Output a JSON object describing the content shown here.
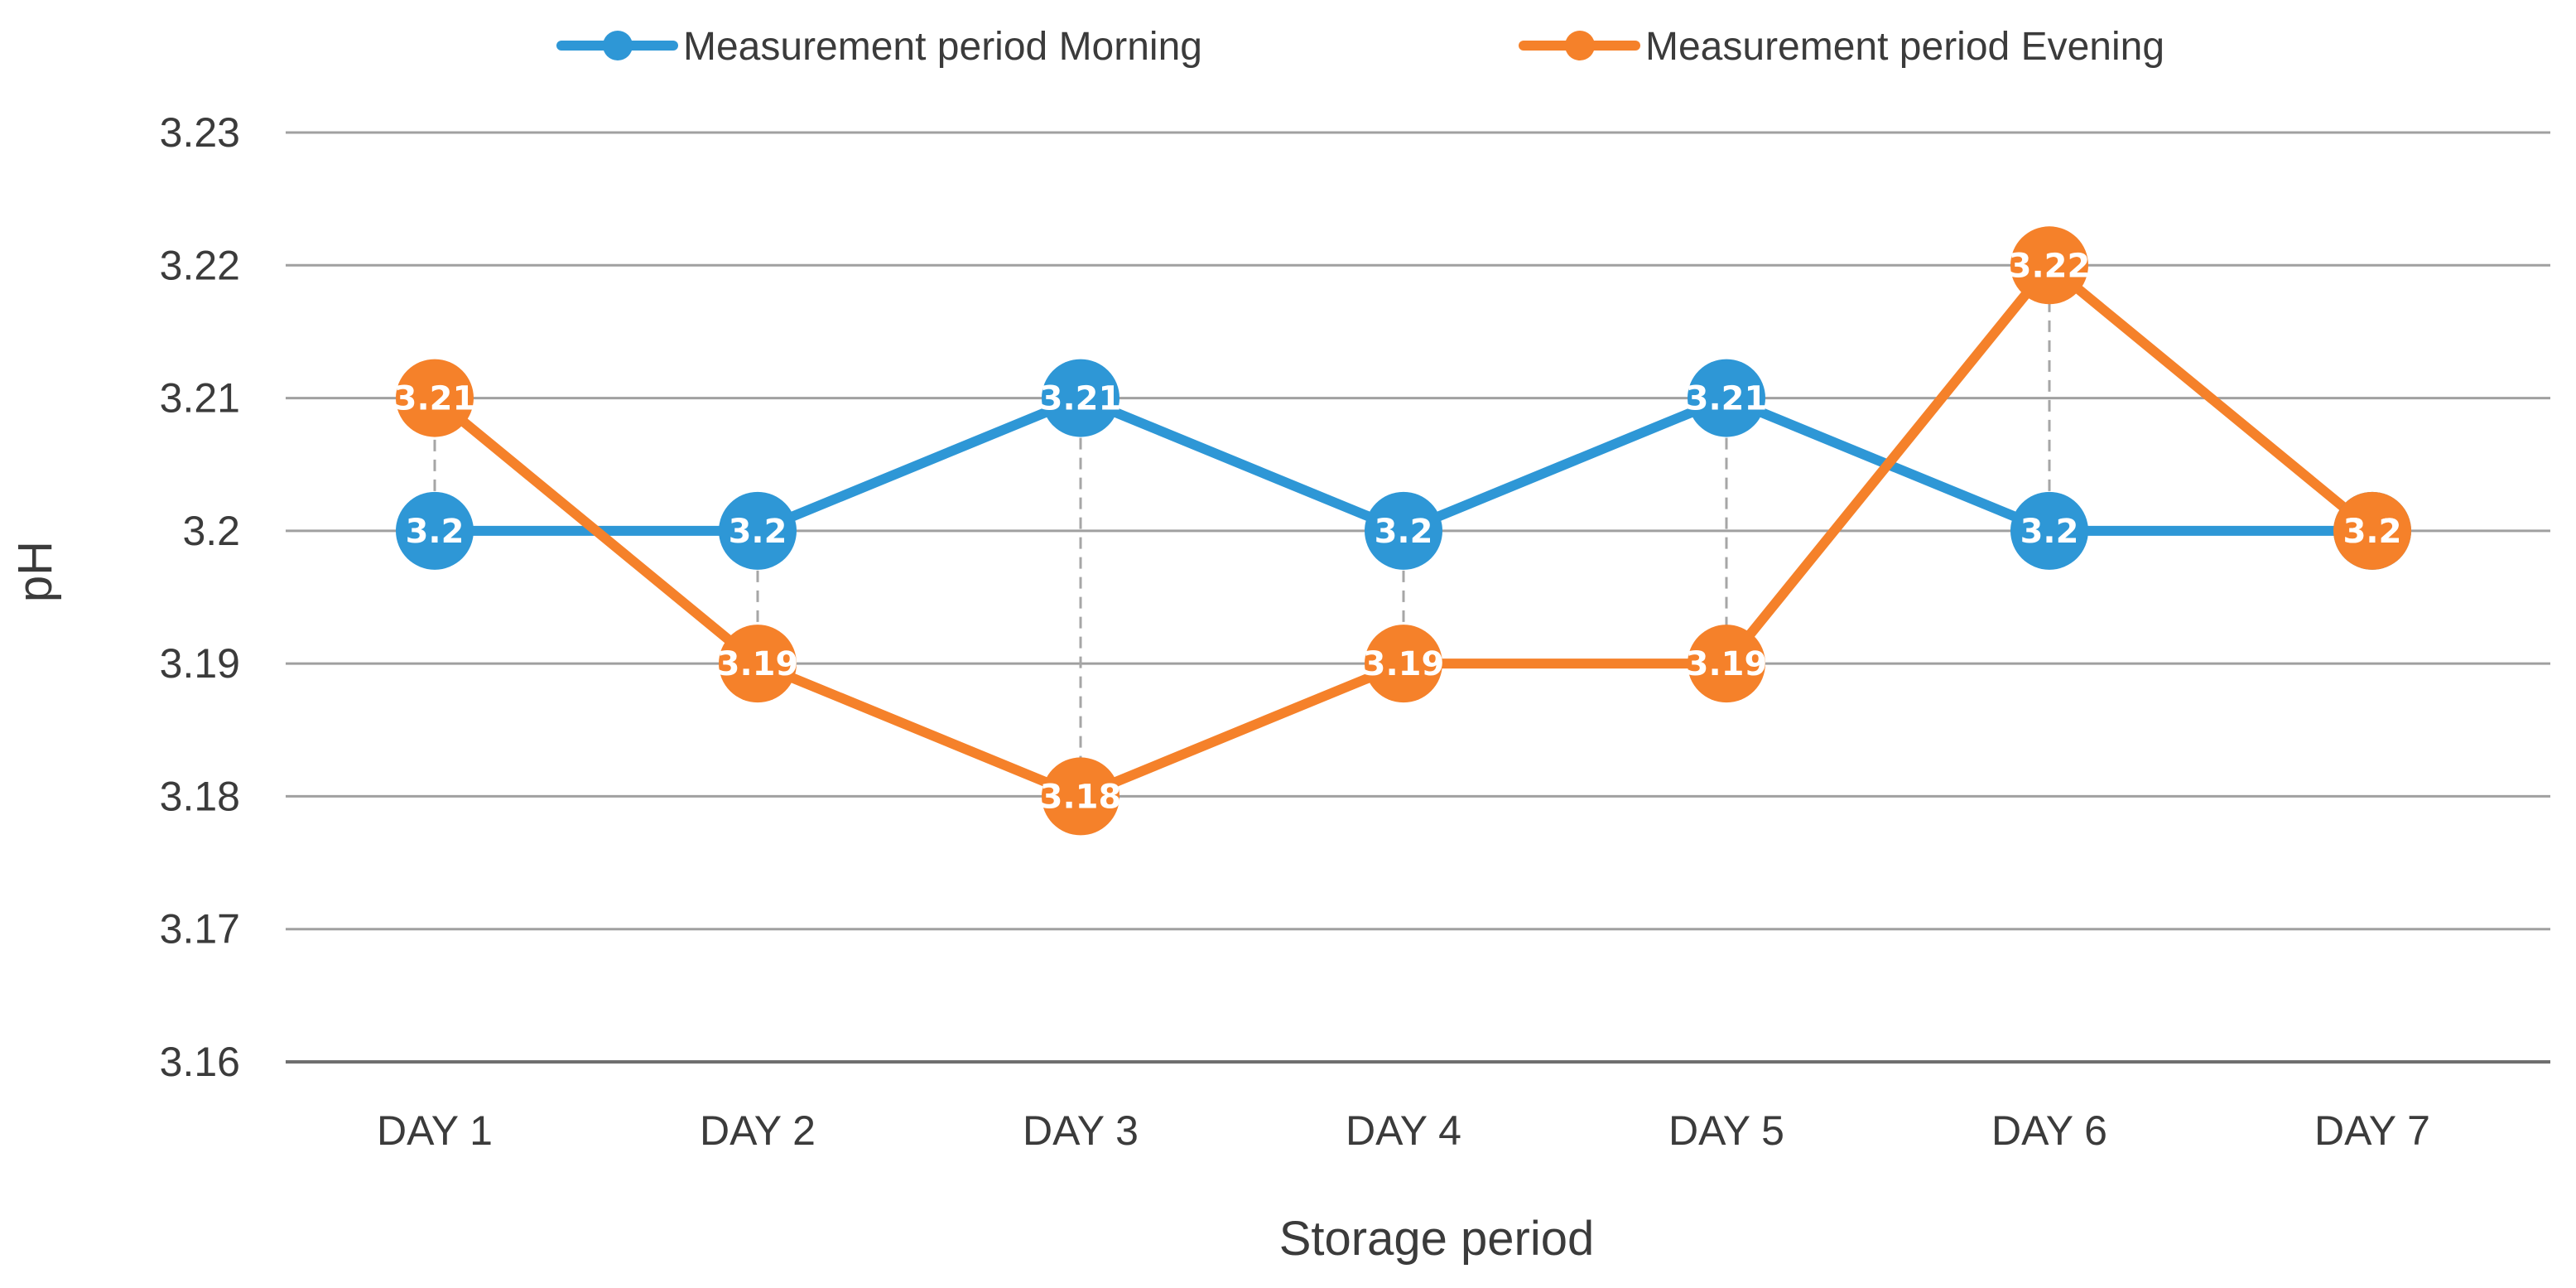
{
  "chart_data": {
    "type": "line",
    "title": "",
    "xlabel": "Storage period",
    "ylabel": "pH",
    "categories": [
      "DAY 1",
      "DAY 2",
      "DAY 3",
      "DAY 4",
      "DAY 5",
      "DAY 6",
      "DAY 7"
    ],
    "ylim": [
      3.16,
      3.23
    ],
    "yticks": [
      "3.16",
      "3.17",
      "3.18",
      "3.19",
      "3.2",
      "3.21",
      "3.22",
      "3.23"
    ],
    "ytick_values": [
      3.16,
      3.17,
      3.18,
      3.19,
      3.2,
      3.21,
      3.22,
      3.23
    ],
    "grid": true,
    "legend_position": "top-center",
    "series": [
      {
        "name": "Measurement period Morning",
        "color": "#2e97d6",
        "values": [
          3.2,
          3.2,
          3.21,
          3.2,
          3.21,
          3.2,
          3.2
        ],
        "labels": [
          "3.2",
          "3.2",
          "3.21",
          "3.2",
          "3.21",
          "3.2",
          "3.2"
        ]
      },
      {
        "name": "Measurement period Evening",
        "color": "#f5812a",
        "values": [
          3.21,
          3.19,
          3.18,
          3.19,
          3.19,
          3.22,
          3.2
        ],
        "labels": [
          "3.21",
          "3.19",
          "3.18",
          "3.19",
          "3.19",
          "3.22",
          "3.2"
        ]
      }
    ],
    "drop_line_color": "#a6a6a6",
    "gridline_color": "#a0a0a0"
  }
}
